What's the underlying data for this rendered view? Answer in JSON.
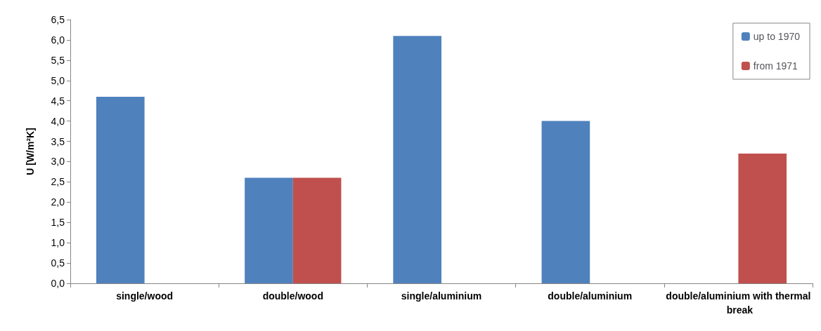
{
  "chart_data": {
    "type": "bar",
    "ylabel": "U [W/m²K]",
    "categories": [
      "single/wood",
      "double/wood",
      "single/aluminium",
      "double/aluminium",
      "double/aluminium with thermal break"
    ],
    "series": [
      {
        "name": "up to 1970",
        "color": "#4f81bd",
        "values": [
          4.6,
          2.6,
          6.1,
          4.0,
          null
        ]
      },
      {
        "name": "from 1971",
        "color": "#c0504d",
        "values": [
          null,
          2.6,
          null,
          null,
          3.2
        ]
      }
    ],
    "ylim": [
      0,
      6.5
    ],
    "yticks": [
      {
        "value": 0,
        "label": "0,0"
      },
      {
        "value": 0.5,
        "label": "0,5"
      },
      {
        "value": 1,
        "label": "1,0"
      },
      {
        "value": 1.5,
        "label": "1,5"
      },
      {
        "value": 2,
        "label": "2,0"
      },
      {
        "value": 2.5,
        "label": "2,5"
      },
      {
        "value": 3,
        "label": "3,0"
      },
      {
        "value": 3.5,
        "label": "3,5"
      },
      {
        "value": 4,
        "label": "4,0"
      },
      {
        "value": 4.5,
        "label": "4,5"
      },
      {
        "value": 5,
        "label": "5,0"
      },
      {
        "value": 5.5,
        "label": "5,5"
      },
      {
        "value": 6,
        "label": "6,0"
      },
      {
        "value": 6.5,
        "label": "6,5"
      }
    ],
    "grid": false,
    "legend": "top right"
  }
}
